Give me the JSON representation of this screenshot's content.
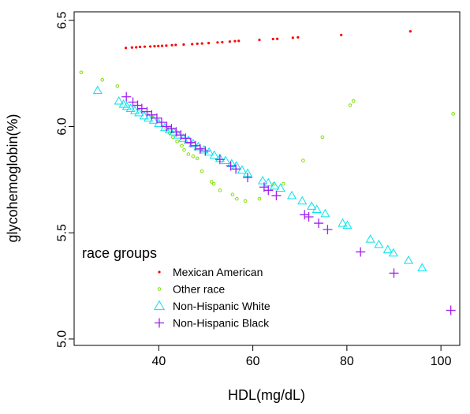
{
  "chart_data": {
    "type": "scatter",
    "title": "",
    "xlabel": "HDL(mg/dL)",
    "ylabel": "glycohemoglobin(%)",
    "xlim": [
      22,
      104
    ],
    "ylim": [
      4.97,
      6.54
    ],
    "xticks": [
      40,
      60,
      80,
      100
    ],
    "yticks": [
      5.0,
      5.5,
      6.0,
      6.5
    ],
    "xtick_labels": [
      "40",
      "60",
      "80",
      "100"
    ],
    "ytick_labels": [
      "5.0",
      "5.5",
      "6.0",
      "6.5"
    ],
    "grid": false,
    "legend": {
      "title": "race groups",
      "position": "bottom-left"
    },
    "series": [
      {
        "name": "Mexican American",
        "marker": "dot",
        "color": "#ff0000",
        "points": [
          [
            33,
            6.37
          ],
          [
            34.3,
            6.372
          ],
          [
            35.2,
            6.373
          ],
          [
            36,
            6.375
          ],
          [
            37,
            6.376
          ],
          [
            38.2,
            6.377
          ],
          [
            39.1,
            6.378
          ],
          [
            39.9,
            6.379
          ],
          [
            40.7,
            6.38
          ],
          [
            41.6,
            6.381
          ],
          [
            42.8,
            6.383
          ],
          [
            43.6,
            6.384
          ],
          [
            45.3,
            6.386
          ],
          [
            47.1,
            6.388
          ],
          [
            48.2,
            6.39
          ],
          [
            49.2,
            6.391
          ],
          [
            50.6,
            6.393
          ],
          [
            52.5,
            6.396
          ],
          [
            53.5,
            6.397
          ],
          [
            55.1,
            6.4
          ],
          [
            56.2,
            6.402
          ],
          [
            57,
            6.403
          ],
          [
            61.4,
            6.408
          ],
          [
            64.3,
            6.412
          ],
          [
            65.2,
            6.413
          ],
          [
            68.5,
            6.418
          ],
          [
            69.6,
            6.42
          ],
          [
            78.8,
            6.431
          ],
          [
            93.5,
            6.448
          ]
        ]
      },
      {
        "name": "Other race",
        "marker": "circle",
        "color": "#7fe000",
        "points": [
          [
            23.5,
            6.255
          ],
          [
            28,
            6.22
          ],
          [
            31.2,
            6.19
          ],
          [
            38.4,
            6.05
          ],
          [
            41.6,
            5.99
          ],
          [
            42.3,
            5.97
          ],
          [
            43,
            5.95
          ],
          [
            43.9,
            5.93
          ],
          [
            44.9,
            5.91
          ],
          [
            45.4,
            5.89
          ],
          [
            46.3,
            5.87
          ],
          [
            47.3,
            5.86
          ],
          [
            48.2,
            5.85
          ],
          [
            49.2,
            5.79
          ],
          [
            51.2,
            5.74
          ],
          [
            51.7,
            5.73
          ],
          [
            53,
            5.7
          ],
          [
            55.7,
            5.68
          ],
          [
            56.6,
            5.66
          ],
          [
            58.4,
            5.65
          ],
          [
            61.4,
            5.66
          ],
          [
            64.5,
            5.73
          ],
          [
            66.5,
            5.73
          ],
          [
            70.7,
            5.84
          ],
          [
            74.8,
            5.95
          ],
          [
            80.7,
            6.1
          ],
          [
            81.4,
            6.12
          ],
          [
            102.6,
            6.06
          ]
        ]
      },
      {
        "name": "Non-Hispanic White",
        "marker": "triangle",
        "color": "#00e5ee",
        "points": [
          [
            27,
            6.17
          ],
          [
            31.5,
            6.12
          ],
          [
            32.5,
            6.105
          ],
          [
            33.2,
            6.095
          ],
          [
            34,
            6.085
          ],
          [
            34.9,
            6.075
          ],
          [
            35.8,
            6.065
          ],
          [
            36.9,
            6.05
          ],
          [
            37.8,
            6.04
          ],
          [
            38.9,
            6.03
          ],
          [
            40,
            6.015
          ],
          [
            41.3,
            5.995
          ],
          [
            42.3,
            5.985
          ],
          [
            43.2,
            5.975
          ],
          [
            44.1,
            5.96
          ],
          [
            45.2,
            5.945
          ],
          [
            46.3,
            5.935
          ],
          [
            47.3,
            5.92
          ],
          [
            48.4,
            5.905
          ],
          [
            49.6,
            5.89
          ],
          [
            50.7,
            5.88
          ],
          [
            51.8,
            5.865
          ],
          [
            53,
            5.85
          ],
          [
            54.2,
            5.84
          ],
          [
            55.5,
            5.825
          ],
          [
            56.5,
            5.815
          ],
          [
            57.7,
            5.795
          ],
          [
            58.9,
            5.78
          ],
          [
            62.1,
            5.745
          ],
          [
            63.3,
            5.735
          ],
          [
            64.6,
            5.72
          ],
          [
            65.9,
            5.71
          ],
          [
            68.3,
            5.675
          ],
          [
            70.5,
            5.65
          ],
          [
            72.5,
            5.625
          ],
          [
            73.6,
            5.61
          ],
          [
            75.4,
            5.59
          ],
          [
            79.1,
            5.545
          ],
          [
            80.1,
            5.535
          ],
          [
            85,
            5.47
          ],
          [
            86.8,
            5.445
          ],
          [
            88.7,
            5.42
          ],
          [
            89.9,
            5.405
          ],
          [
            93.1,
            5.37
          ],
          [
            96,
            5.335
          ]
        ]
      },
      {
        "name": "Non-Hispanic Black",
        "marker": "plus",
        "color": "#a020f0",
        "points": [
          [
            33.1,
            6.14
          ],
          [
            34.5,
            6.115
          ],
          [
            35.5,
            6.1
          ],
          [
            36.4,
            6.085
          ],
          [
            37.5,
            6.07
          ],
          [
            38.5,
            6.055
          ],
          [
            39.6,
            6.04
          ],
          [
            40.6,
            6.02
          ],
          [
            41.7,
            6.0
          ],
          [
            42.7,
            5.99
          ],
          [
            43.7,
            5.975
          ],
          [
            44.7,
            5.96
          ],
          [
            45.7,
            5.945
          ],
          [
            46.8,
            5.925
          ],
          [
            47.8,
            5.91
          ],
          [
            48.8,
            5.895
          ],
          [
            49.9,
            5.885
          ],
          [
            53,
            5.845
          ],
          [
            55.3,
            5.815
          ],
          [
            56.4,
            5.8
          ],
          [
            58.9,
            5.76
          ],
          [
            62.4,
            5.715
          ],
          [
            63.3,
            5.7
          ],
          [
            65,
            5.675
          ],
          [
            71,
            5.585
          ],
          [
            71.9,
            5.575
          ],
          [
            74,
            5.545
          ],
          [
            75.9,
            5.515
          ],
          [
            82.9,
            5.41
          ],
          [
            90,
            5.31
          ],
          [
            102.1,
            5.135
          ]
        ]
      }
    ]
  }
}
